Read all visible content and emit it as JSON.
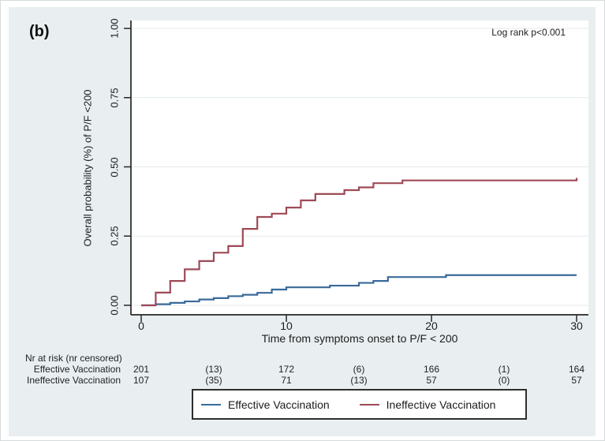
{
  "figure": {
    "panel_label": "(b)"
  },
  "chart_data": {
    "type": "line",
    "subtype": "kaplan-meier-cumulative-incidence-step",
    "title": "",
    "xlabel": "Time from symptoms onset to P/F < 200",
    "ylabel": "Overall probability (%) of P/F <200",
    "annotation": "Log rank p<0.001",
    "xlim": [
      0,
      30
    ],
    "ylim": [
      0,
      1
    ],
    "xticks": [
      "0",
      "10",
      "20",
      "30"
    ],
    "yticks": [
      "0.00",
      "0.25",
      "0.50",
      "0.75",
      "1.00"
    ],
    "grid": "horizontal",
    "legend_position": "bottom",
    "colors": {
      "effective": "#3a6a99",
      "ineffective": "#9e4a56",
      "panel_background": "#e9eff1",
      "plot_background": "#ffffff",
      "gridline": "#e4e9eb",
      "axis": "#262626"
    },
    "series": [
      {
        "name": "Effective Vaccination",
        "color": "#3a6a99",
        "steps": [
          [
            0,
            0
          ],
          [
            1,
            0.004
          ],
          [
            2,
            0.009
          ],
          [
            3,
            0.014
          ],
          [
            4,
            0.021
          ],
          [
            5,
            0.026
          ],
          [
            6,
            0.033
          ],
          [
            7,
            0.038
          ],
          [
            8,
            0.045
          ],
          [
            9,
            0.057
          ],
          [
            10,
            0.065
          ],
          [
            13,
            0.071
          ],
          [
            15,
            0.081
          ],
          [
            16,
            0.088
          ],
          [
            17,
            0.102
          ],
          [
            21,
            0.109
          ]
        ]
      },
      {
        "name": "Ineffective Vaccination",
        "color": "#9e4a56",
        "steps": [
          [
            0,
            0
          ],
          [
            1,
            0.046
          ],
          [
            2,
            0.088
          ],
          [
            3,
            0.13
          ],
          [
            4,
            0.16
          ],
          [
            5,
            0.19
          ],
          [
            6,
            0.214
          ],
          [
            7,
            0.276
          ],
          [
            8,
            0.319
          ],
          [
            9,
            0.331
          ],
          [
            10,
            0.353
          ],
          [
            11,
            0.379
          ],
          [
            12,
            0.402
          ],
          [
            14,
            0.416
          ],
          [
            15,
            0.426
          ],
          [
            16,
            0.441
          ],
          [
            18,
            0.451
          ],
          [
            30,
            0.46
          ]
        ]
      }
    ]
  },
  "risk_table": {
    "header": "Nr at risk (nr censored)",
    "columns_t": [
      0,
      5,
      10,
      15,
      20,
      25,
      30
    ],
    "rows": [
      {
        "label": "Effective Vaccination",
        "values": [
          "201",
          "(13)",
          "172",
          "(6)",
          "166",
          "(1)",
          "164"
        ]
      },
      {
        "label": "Ineffective Vaccination",
        "values": [
          "107",
          "(35)",
          "71",
          "(13)",
          "57",
          "(0)",
          "57"
        ]
      }
    ]
  },
  "legend": {
    "entries": [
      {
        "label": "Effective Vaccination",
        "color": "#3a6a99"
      },
      {
        "label": "Ineffective Vaccination",
        "color": "#9e4a56"
      }
    ]
  }
}
